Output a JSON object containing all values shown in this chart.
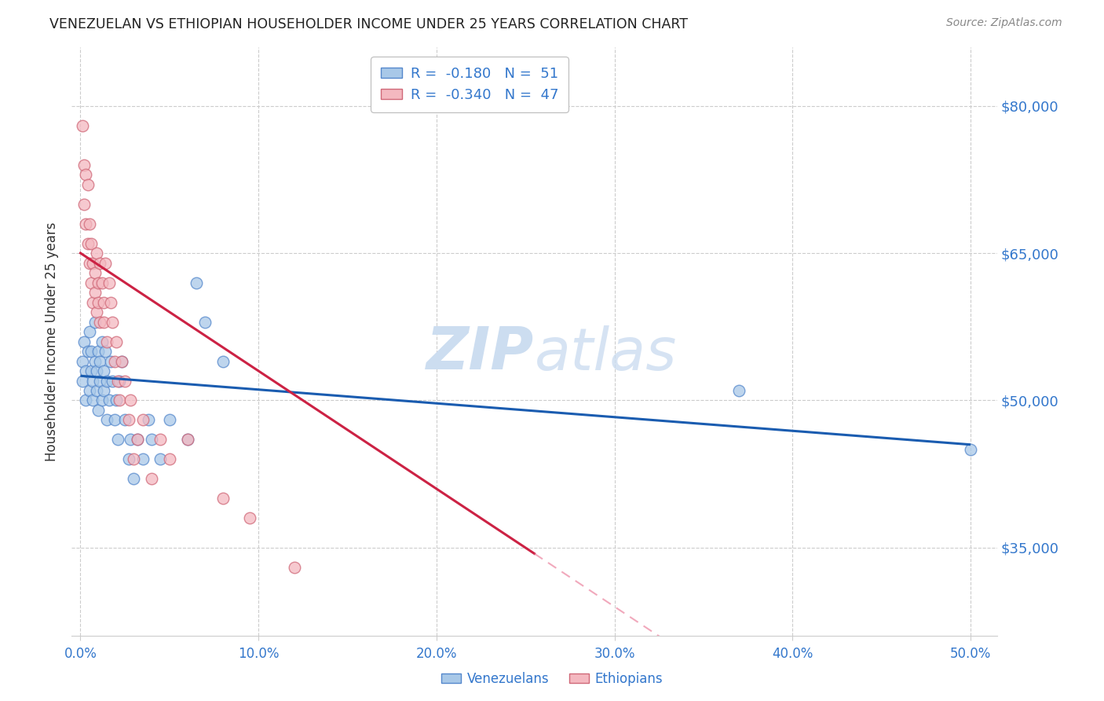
{
  "title": "VENEZUELAN VS ETHIOPIAN HOUSEHOLDER INCOME UNDER 25 YEARS CORRELATION CHART",
  "source": "Source: ZipAtlas.com",
  "ylabel": "Householder Income Under 25 years",
  "xlabel_ticks": [
    "0.0%",
    "10.0%",
    "20.0%",
    "30.0%",
    "40.0%",
    "50.0%"
  ],
  "x_tick_vals": [
    0.0,
    0.1,
    0.2,
    0.3,
    0.4,
    0.5
  ],
  "ylabel_ticks": [
    "$35,000",
    "$50,000",
    "$65,000",
    "$80,000"
  ],
  "ylabel_values": [
    35000,
    50000,
    65000,
    80000
  ],
  "xlim": [
    -0.005,
    0.515
  ],
  "ylim": [
    26000,
    86000
  ],
  "watermark_zip": "ZIP",
  "watermark_atlas": "atlas",
  "venezuelan_x": [
    0.001,
    0.001,
    0.002,
    0.003,
    0.003,
    0.004,
    0.005,
    0.005,
    0.006,
    0.006,
    0.007,
    0.007,
    0.008,
    0.008,
    0.009,
    0.009,
    0.01,
    0.01,
    0.011,
    0.011,
    0.012,
    0.012,
    0.013,
    0.013,
    0.014,
    0.015,
    0.015,
    0.016,
    0.017,
    0.018,
    0.019,
    0.02,
    0.021,
    0.022,
    0.023,
    0.025,
    0.027,
    0.028,
    0.03,
    0.032,
    0.035,
    0.038,
    0.04,
    0.045,
    0.05,
    0.06,
    0.065,
    0.07,
    0.08,
    0.37,
    0.5
  ],
  "venezuelan_y": [
    52000,
    54000,
    56000,
    50000,
    53000,
    55000,
    51000,
    57000,
    53000,
    55000,
    50000,
    52000,
    54000,
    58000,
    51000,
    53000,
    49000,
    55000,
    52000,
    54000,
    50000,
    56000,
    53000,
    51000,
    55000,
    48000,
    52000,
    50000,
    54000,
    52000,
    48000,
    50000,
    46000,
    52000,
    54000,
    48000,
    44000,
    46000,
    42000,
    46000,
    44000,
    48000,
    46000,
    44000,
    48000,
    46000,
    62000,
    58000,
    54000,
    51000,
    45000
  ],
  "ethiopian_x": [
    0.001,
    0.002,
    0.002,
    0.003,
    0.003,
    0.004,
    0.004,
    0.005,
    0.005,
    0.006,
    0.006,
    0.007,
    0.007,
    0.008,
    0.008,
    0.009,
    0.009,
    0.01,
    0.01,
    0.011,
    0.011,
    0.012,
    0.013,
    0.013,
    0.014,
    0.015,
    0.016,
    0.017,
    0.018,
    0.019,
    0.02,
    0.021,
    0.022,
    0.023,
    0.025,
    0.027,
    0.028,
    0.03,
    0.032,
    0.035,
    0.04,
    0.045,
    0.05,
    0.06,
    0.08,
    0.095,
    0.12
  ],
  "ethiopian_y": [
    78000,
    74000,
    70000,
    73000,
    68000,
    66000,
    72000,
    64000,
    68000,
    62000,
    66000,
    64000,
    60000,
    63000,
    61000,
    65000,
    59000,
    62000,
    60000,
    64000,
    58000,
    62000,
    60000,
    58000,
    64000,
    56000,
    62000,
    60000,
    58000,
    54000,
    56000,
    52000,
    50000,
    54000,
    52000,
    48000,
    50000,
    44000,
    46000,
    48000,
    42000,
    46000,
    44000,
    46000,
    40000,
    38000,
    33000
  ],
  "blue_dot_fill": "#a8c8e8",
  "blue_dot_edge": "#5588cc",
  "pink_dot_fill": "#f4b8c0",
  "pink_dot_edge": "#d06878",
  "line_blue_color": "#1a5cb0",
  "line_pink_color": "#cc2244",
  "line_pink_dash_color": "#e87090",
  "title_color": "#222222",
  "axis_label_color": "#333333",
  "tick_color": "#3377cc",
  "grid_color": "#cccccc",
  "source_color": "#888888",
  "watermark_color": "#ccddf0",
  "blue_line_intercept": 52500,
  "blue_line_slope": -14000,
  "pink_line_intercept": 65000,
  "pink_line_slope": -120000
}
